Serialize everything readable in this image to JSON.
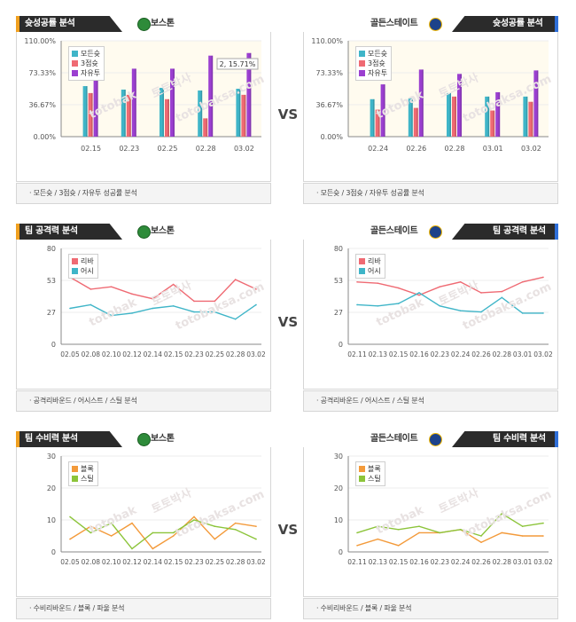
{
  "vs_label": "VS",
  "watermarks": [
    "토토박사",
    "totobaksa.com",
    "totobak"
  ],
  "sections": [
    {
      "left": {
        "title": "슛성공률 분석",
        "team": "보스톤",
        "logo_color": "#2e8b3a",
        "accent": "#f0a020",
        "footer": "모든슛 / 3점슛 / 자유투 성공률 분석"
      },
      "right": {
        "title": "슛성공률 분석",
        "team": "골든스테이트",
        "logo_color": "#1d428a",
        "accent": "#2f6fd8",
        "footer": "모든슛 / 3점슛 / 자유투 성공률 분석"
      }
    },
    {
      "left": {
        "title": "팀 공격력 분석",
        "team": "보스톤",
        "logo_color": "#2e8b3a",
        "accent": "#f0a020",
        "footer": "공격리바운드 / 어시스트 / 스틸 분석"
      },
      "right": {
        "title": "팀 공격력 분석",
        "team": "골든스테이트",
        "logo_color": "#1d428a",
        "accent": "#2f6fd8",
        "footer": "공격리바운드 / 어시스트 / 스틸 분석"
      }
    },
    {
      "left": {
        "title": "팀 수비력 분석",
        "team": "보스톤",
        "logo_color": "#2e8b3a",
        "accent": "#f0a020",
        "footer": "수비리바운드 / 블록 / 파울 분석"
      },
      "right": {
        "title": "팀 수비력 분석",
        "team": "골든스테이트",
        "logo_color": "#1d428a",
        "accent": "#2f6fd8",
        "footer": "수비리바운드 / 블록 / 파울 분석"
      }
    }
  ],
  "chart_data": [
    {
      "id": "boston-shooting",
      "type": "bar",
      "categories": [
        "02.15",
        "02.23",
        "02.25",
        "02.28",
        "03.02"
      ],
      "yticks": [
        "0.00%",
        "36.67%",
        "73.33%",
        "110.00%"
      ],
      "ylim": [
        0,
        110
      ],
      "series": [
        {
          "name": "모든슛",
          "color": "#3fb5c8",
          "values": [
            58,
            54,
            56,
            53,
            55
          ]
        },
        {
          "name": "3점슛",
          "color": "#ef6a73",
          "values": [
            50,
            48,
            43,
            21,
            48
          ]
        },
        {
          "name": "자유투",
          "color": "#9b3fd0",
          "values": [
            80,
            78,
            78,
            93,
            96
          ]
        }
      ],
      "annotation": "2, 15.71%"
    },
    {
      "id": "gsw-shooting",
      "type": "bar",
      "categories": [
        "02.24",
        "02.26",
        "02.28",
        "03.01",
        "03.02"
      ],
      "yticks": [
        "0.00%",
        "36.67%",
        "73.33%",
        "110.00%"
      ],
      "ylim": [
        0,
        110
      ],
      "series": [
        {
          "name": "모든슛",
          "color": "#3fb5c8",
          "values": [
            43,
            44,
            50,
            46,
            46
          ]
        },
        {
          "name": "3점슛",
          "color": "#ef6a73",
          "values": [
            31,
            33,
            46,
            30,
            40
          ]
        },
        {
          "name": "자유투",
          "color": "#9b3fd0",
          "values": [
            60,
            77,
            72,
            51,
            76
          ]
        }
      ]
    },
    {
      "id": "boston-offense",
      "type": "line",
      "categories": [
        "02.05",
        "02.08",
        "02.10",
        "02.12",
        "02.14",
        "02.15",
        "02.23",
        "02.25",
        "02.28",
        "03.02"
      ],
      "yticks": [
        "0",
        "27",
        "53",
        "80"
      ],
      "ylim": [
        0,
        80
      ],
      "series": [
        {
          "name": "리바",
          "color": "#ef6a73",
          "values": [
            56,
            46,
            48,
            42,
            38,
            50,
            36,
            36,
            54,
            46
          ]
        },
        {
          "name": "어시",
          "color": "#3fb5c8",
          "values": [
            30,
            33,
            24,
            26,
            30,
            32,
            27,
            27,
            21,
            33
          ]
        }
      ]
    },
    {
      "id": "gsw-offense",
      "type": "line",
      "categories": [
        "02.11",
        "02.13",
        "02.15",
        "02.16",
        "02.23",
        "02.24",
        "02.26",
        "02.28",
        "03.01",
        "03.02"
      ],
      "yticks": [
        "0",
        "27",
        "53",
        "80"
      ],
      "ylim": [
        0,
        80
      ],
      "series": [
        {
          "name": "리바",
          "color": "#ef6a73",
          "values": [
            52,
            51,
            47,
            41,
            48,
            52,
            43,
            44,
            52,
            56
          ]
        },
        {
          "name": "어시",
          "color": "#3fb5c8",
          "values": [
            33,
            32,
            34,
            43,
            32,
            28,
            27,
            39,
            26,
            26
          ]
        }
      ]
    },
    {
      "id": "boston-defense",
      "type": "line",
      "categories": [
        "02.05",
        "02.08",
        "02.10",
        "02.12",
        "02.14",
        "02.15",
        "02.23",
        "02.25",
        "02.28",
        "03.02"
      ],
      "yticks": [
        "0",
        "10",
        "20",
        "30"
      ],
      "ylim": [
        0,
        30
      ],
      "series": [
        {
          "name": "블록",
          "color": "#f39a3a",
          "values": [
            4,
            8,
            5,
            9,
            1,
            5,
            11,
            4,
            9,
            8
          ]
        },
        {
          "name": "스틸",
          "color": "#8cc43a",
          "values": [
            11,
            6,
            9,
            1,
            6,
            6,
            10,
            8,
            7,
            4
          ]
        }
      ]
    },
    {
      "id": "gsw-defense",
      "type": "line",
      "categories": [
        "02.11",
        "02.13",
        "02.15",
        "02.16",
        "02.23",
        "02.24",
        "02.26",
        "02.28",
        "03.01",
        "03.02"
      ],
      "yticks": [
        "0",
        "10",
        "20",
        "30"
      ],
      "ylim": [
        0,
        30
      ],
      "series": [
        {
          "name": "블록",
          "color": "#f39a3a",
          "values": [
            2,
            4,
            2,
            6,
            6,
            7,
            3,
            6,
            5,
            5
          ]
        },
        {
          "name": "스틸",
          "color": "#8cc43a",
          "values": [
            6,
            8,
            7,
            8,
            6,
            7,
            5,
            12,
            8,
            9
          ]
        }
      ]
    }
  ]
}
